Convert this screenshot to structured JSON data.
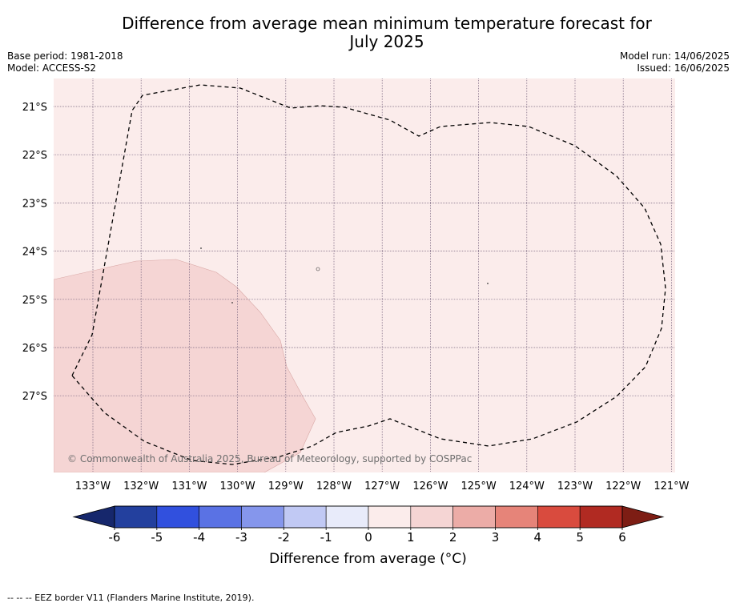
{
  "header": {
    "title_line1": "Difference from average mean minimum temperature forecast for",
    "title_line2": "July 2025",
    "base_period": "Base period: 1981-2018",
    "model": "Model: ACCESS-S2",
    "model_run": "Model run: 14/06/2025",
    "issued": "Issued: 16/06/2025"
  },
  "map": {
    "lat_labels": [
      "21°S",
      "22°S",
      "23°S",
      "24°S",
      "25°S",
      "26°S",
      "27°S"
    ],
    "lon_labels": [
      "133°W",
      "132°W",
      "131°W",
      "130°W",
      "129°W",
      "128°W",
      "127°W",
      "126°W",
      "125°W",
      "124°W",
      "123°W",
      "122°W",
      "121°W"
    ],
    "copyright": "© Commonwealth of Australia 2025, Bureau of Meteorology, supported by COSPPac",
    "field_colors": {
      "band_1_2": "#fbeceb",
      "band_2_3": "#f5d5d4"
    }
  },
  "colorbar": {
    "ticks": [
      "-6",
      "-5",
      "-4",
      "-3",
      "-2",
      "-1",
      "0",
      "1",
      "2",
      "3",
      "4",
      "5",
      "6"
    ],
    "colors": [
      "#23409e",
      "#3150de",
      "#5a72e4",
      "#8596ec",
      "#c1c9f4",
      "#e8ebfa",
      "#fbeceb",
      "#f5d5d4",
      "#ecaca7",
      "#e68479",
      "#d94b3e",
      "#b12a22"
    ],
    "extend_low_color": "#16276c",
    "extend_high_color": "#7d1d14",
    "label": "Difference from average (°C)"
  },
  "footer": {
    "legend_note": "-- -- -- EEZ border V11 (Flanders Marine Institute, 2019)."
  }
}
